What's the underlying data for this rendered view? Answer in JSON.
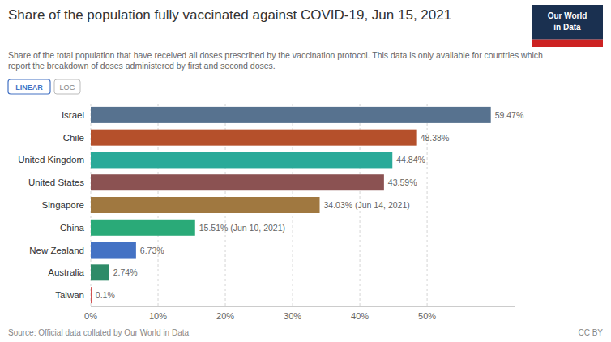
{
  "chart_data": {
    "type": "bar",
    "orientation": "horizontal",
    "title": "Share of the population fully vaccinated against COVID-19, Jun 15, 2021",
    "subtitle": "Share of the total population that have received all doses prescribed by the vaccination protocol. This data is only available for countries which\nreport the breakdown of doses administered by first and second doses.",
    "categories": [
      "Israel",
      "Chile",
      "United Kingdom",
      "United States",
      "Singapore",
      "China",
      "New Zealand",
      "Australia",
      "Taiwan"
    ],
    "values": [
      59.47,
      48.38,
      44.84,
      43.59,
      34.03,
      15.51,
      6.73,
      2.74,
      0.1
    ],
    "value_labels": [
      "59.47%",
      "48.38%",
      "44.84%",
      "43.59%",
      "34.03% (Jun 14, 2021)",
      "15.51% (Jun 10, 2021)",
      "6.73%",
      "2.74%",
      "0.1%"
    ],
    "data_labels": true,
    "colors": [
      "#57728f",
      "#b5502b",
      "#2aaa99",
      "#8b5252",
      "#a07840",
      "#2aaa78",
      "#4472c4",
      "#2e8b68",
      "#cc3333"
    ],
    "xlim": [
      0,
      63
    ],
    "xticks": [
      {
        "value": 0,
        "label": "0%"
      },
      {
        "value": 10,
        "label": "10%"
      },
      {
        "value": 20,
        "label": "20%"
      },
      {
        "value": 30,
        "label": "30%"
      },
      {
        "value": 40,
        "label": "40%"
      },
      {
        "value": 50,
        "label": "50%"
      }
    ],
    "grid": true,
    "source": "Source: Official data collated by Our World in Data",
    "annotations": [
      "CC BY",
      "LINEAR",
      "LOG",
      "Our World",
      "in Data"
    ]
  }
}
